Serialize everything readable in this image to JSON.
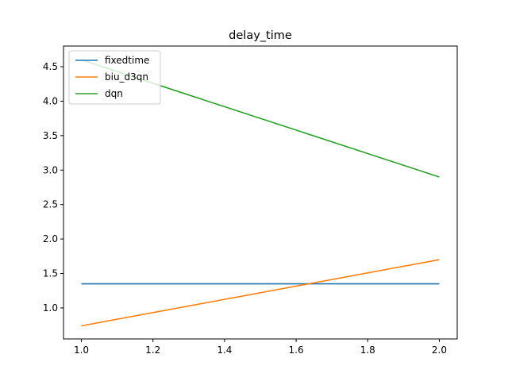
{
  "chart_data": {
    "type": "line",
    "title": "delay_time",
    "xlabel": "",
    "ylabel": "",
    "xlim": [
      0.95,
      2.05
    ],
    "ylim": [
      0.55,
      4.8
    ],
    "xticks": [
      1.0,
      1.2,
      1.4,
      1.6,
      1.8,
      2.0
    ],
    "xtick_labels": [
      "1.0",
      "1.2",
      "1.4",
      "1.6",
      "1.8",
      "2.0"
    ],
    "yticks": [
      1.0,
      1.5,
      2.0,
      2.5,
      3.0,
      3.5,
      4.0,
      4.5
    ],
    "ytick_labels": [
      "1.0",
      "1.5",
      "2.0",
      "2.5",
      "3.0",
      "3.5",
      "4.0",
      "4.5"
    ],
    "grid": false,
    "legend_position": "upper left",
    "x": [
      1.0,
      2.0
    ],
    "series": [
      {
        "name": "fixedtime",
        "values": [
          1.35,
          1.35
        ],
        "color": "#1f77b4"
      },
      {
        "name": "biu_d3qn",
        "values": [
          0.74,
          1.7
        ],
        "color": "#ff7f0e"
      },
      {
        "name": "dqn",
        "values": [
          4.6,
          2.9
        ],
        "color": "#2ca02c"
      }
    ]
  }
}
